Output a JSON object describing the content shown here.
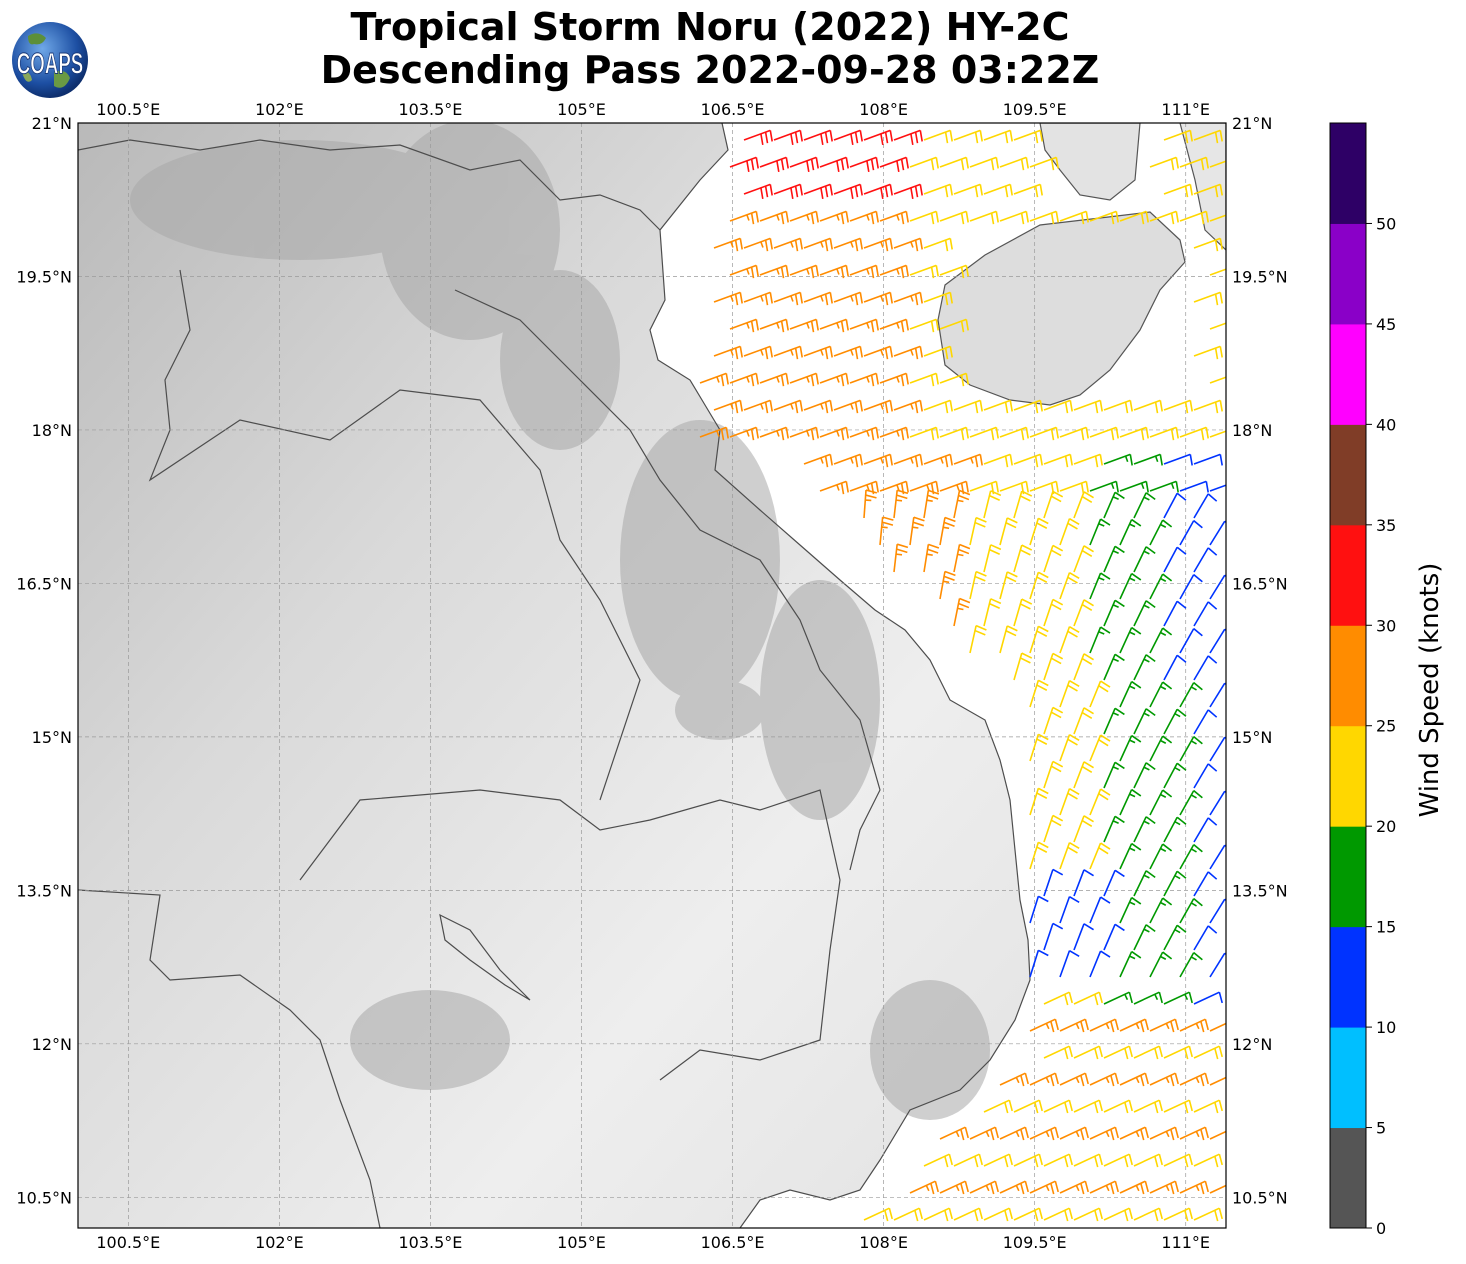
{
  "title": {
    "line1": "Tropical Storm Noru (2022) HY-2C",
    "line2": "Descending Pass 2022-09-28 03:22Z"
  },
  "logo": {
    "text": "COAPS",
    "icon": "globe-icon"
  },
  "map": {
    "lon_range": [
      100.0,
      111.4
    ],
    "lat_range": [
      10.2,
      21.0
    ],
    "lon_ticks": [
      "100.5°E",
      "102°E",
      "103.5°E",
      "105°E",
      "106.5°E",
      "108°E",
      "109.5°E",
      "111°E"
    ],
    "lat_ticks": [
      "21°N",
      "19.5°N",
      "18°N",
      "16.5°N",
      "15°N",
      "13.5°N",
      "12°N",
      "10.5°N"
    ],
    "grid": true,
    "basemap": "grayscale-topography"
  },
  "colorbar": {
    "label": "Wind Speed (knots)",
    "ticks": [
      "0",
      "5",
      "10",
      "15",
      "20",
      "25",
      "30",
      "35",
      "40",
      "45",
      "50"
    ],
    "colors": [
      "#555555",
      "#00bfff",
      "#0033ff",
      "#009900",
      "#ffd700",
      "#ff8c00",
      "#ff1010",
      "#803d27",
      "#ff00ff",
      "#8a00c8",
      "#2e0066"
    ]
  }
}
